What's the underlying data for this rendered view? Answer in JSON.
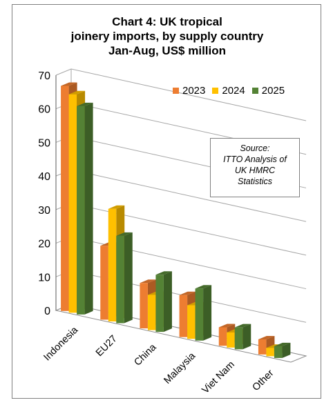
{
  "chart_data": {
    "type": "bar",
    "title_lines": [
      "Chart 4: UK tropical",
      "joinery imports, by supply country",
      "Jan-Aug, US$ million"
    ],
    "categories": [
      "Indonesia",
      "EU27",
      "China",
      "Malaysia",
      "Viet Nam",
      "Other"
    ],
    "series": [
      {
        "name": "2023",
        "values": [
          67,
          22,
          13.5,
          12.5,
          5.5,
          4.5
        ],
        "color": "#ed7d31"
      },
      {
        "name": "2024",
        "values": [
          65,
          33.5,
          10.5,
          10,
          4.5,
          2.5
        ],
        "color": "#ffc000"
      },
      {
        "name": "2025",
        "values": [
          62,
          26,
          17,
          15.5,
          6.5,
          3.5
        ],
        "color": "#548235"
      }
    ],
    "y_ticks": [
      0,
      10,
      20,
      30,
      40,
      50,
      60,
      70
    ],
    "ylim": [
      0,
      70
    ],
    "grid": true,
    "legend_position": "top-right",
    "annotation_lines": [
      "Source:",
      "ITTO Analysis of",
      "UK HMRC",
      "Statistics"
    ]
  }
}
